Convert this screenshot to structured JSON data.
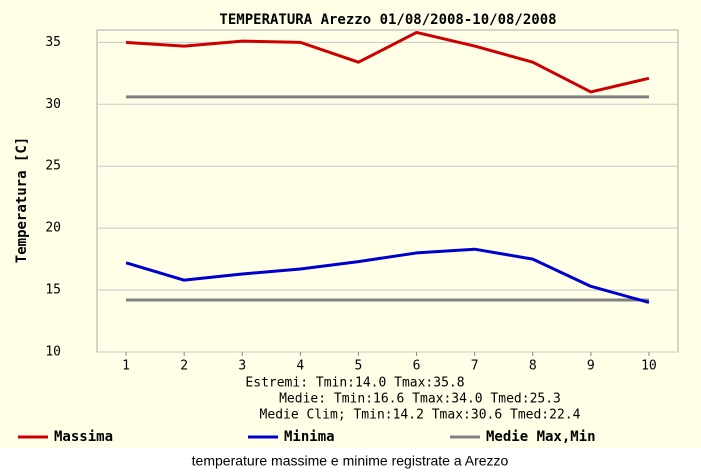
{
  "chart_data": {
    "type": "line",
    "title": "TEMPERATURA Arezzo 01/08/2008-10/08/2008",
    "ylabel": "Temperatura [C]",
    "x": [
      1,
      2,
      3,
      4,
      5,
      6,
      7,
      8,
      9,
      10
    ],
    "xlim": [
      0.5,
      10.5
    ],
    "xticks": [
      1,
      2,
      3,
      4,
      5,
      6,
      7,
      8,
      9,
      10
    ],
    "ylim": [
      10,
      36
    ],
    "yticks": [
      10,
      15,
      20,
      25,
      30,
      35
    ],
    "series": [
      {
        "name": "Massima",
        "color": "#cc0000",
        "values": [
          35.0,
          34.7,
          35.1,
          35.0,
          33.4,
          35.8,
          34.7,
          33.4,
          31.0,
          32.1
        ]
      },
      {
        "name": "Minima",
        "color": "#0000cc",
        "values": [
          17.2,
          15.8,
          16.3,
          16.7,
          17.3,
          18.0,
          18.3,
          17.5,
          15.3,
          14.0
        ]
      }
    ],
    "reference": {
      "name": "Medie Max,Min",
      "color": "#808080",
      "values": [
        30.6,
        14.2
      ]
    },
    "annotations": [
      "Estremi: Tmin:14.0 Tmax:35.8",
      "Medie: Tmin:16.6 Tmax:34.0 Tmed:25.3",
      "Medie Clim; Tmin:14.2 Tmax:30.6 Tmed:22.4"
    ],
    "caption": "temperature massime e minime registrate a Arezzo"
  }
}
